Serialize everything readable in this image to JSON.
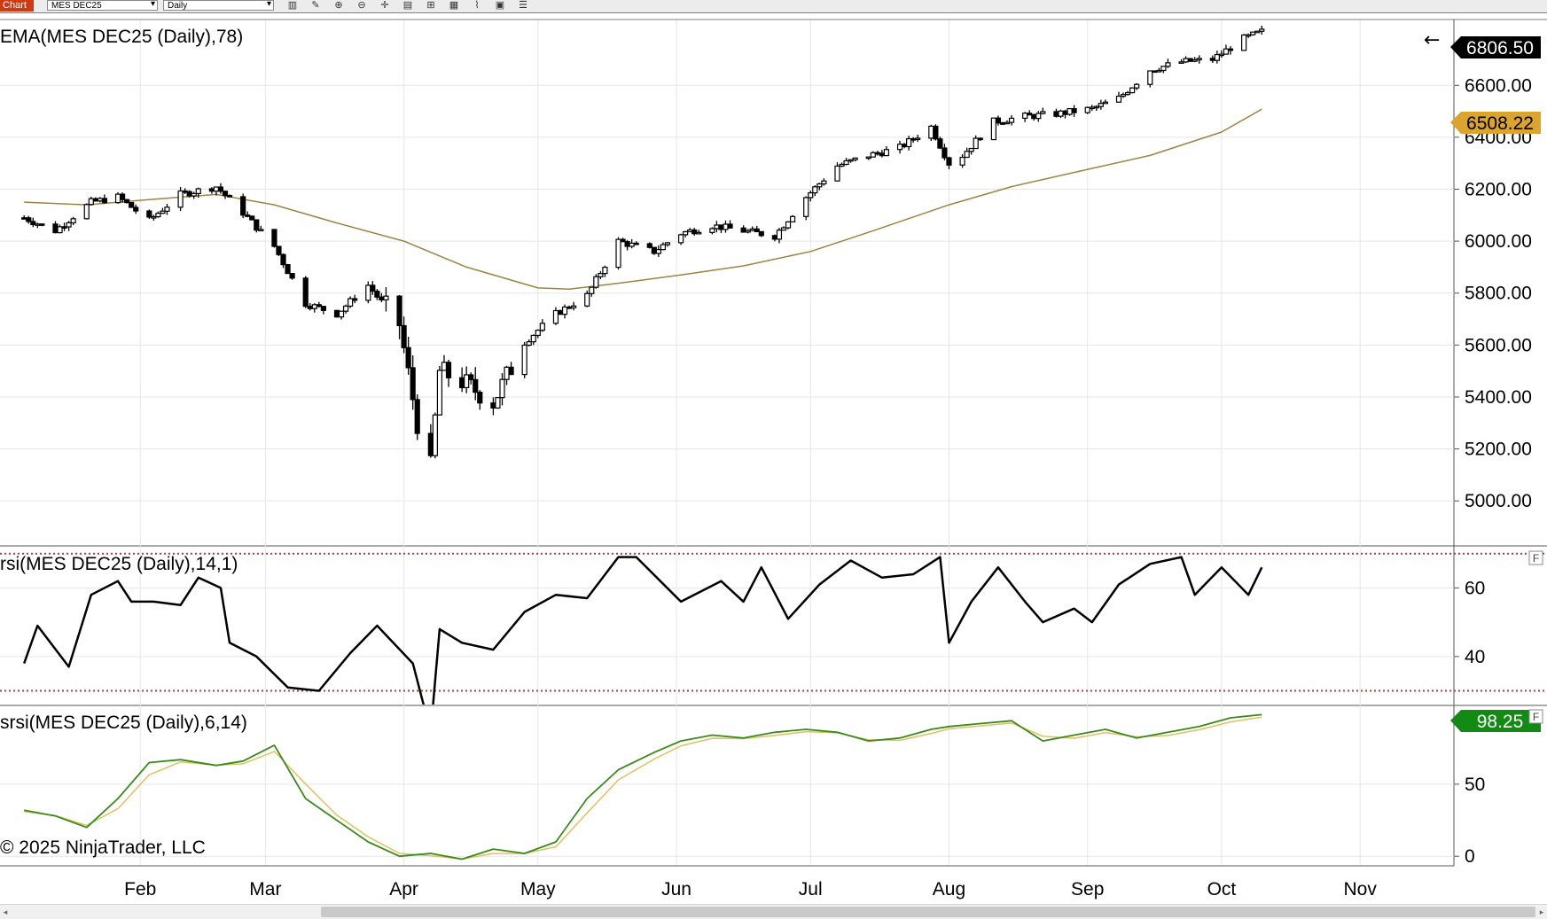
{
  "toolbar": {
    "tab_label": "Chart",
    "instrument": "MES DEC25",
    "interval": "Daily",
    "icons": [
      "bars-type-icon",
      "draw-pencil-icon",
      "zoom-in-icon",
      "zoom-out-icon",
      "crosshair-icon",
      "data-box-icon",
      "properties-icon",
      "indicators-icon",
      "strategies-icon",
      "templates-icon",
      "list-icon"
    ]
  },
  "colors": {
    "price_line": "#000000",
    "ema": "#9c8440",
    "ema_label_bg": "#dba42d",
    "rsi_line": "#000000",
    "rsi_levels": "#b13c3c",
    "srsi_main": "#3a8a1a",
    "srsi_signal": "#e0c060",
    "srsi_label_bg": "#138a13",
    "grid": "#e6e6e6"
  },
  "panels": {
    "price": {
      "label": "EMA(MES DEC25 (Daily),78)",
      "last_price": "6806.50",
      "ema_value": "6508.22",
      "back_icon": "arrow-left-icon",
      "y_ticks": [
        "6600.00",
        "6400.00",
        "6200.00",
        "6000.00",
        "5800.00",
        "5600.00",
        "5400.00",
        "5200.00",
        "5000.00"
      ]
    },
    "rsi": {
      "label": "rsi(MES DEC25 (Daily),14,1)",
      "y_ticks": [
        "60",
        "40"
      ],
      "flag": "F"
    },
    "srsi": {
      "label": "srsi(MES DEC25 (Daily),6,14)",
      "value": "98.25",
      "y_ticks": [
        "50",
        "0"
      ],
      "flag": "F"
    }
  },
  "x_axis": {
    "months": [
      "Feb",
      "Mar",
      "Apr",
      "May",
      "Jun",
      "Jul",
      "Aug",
      "Sep",
      "Oct",
      "Nov"
    ]
  },
  "copyright": "© 2025 NinjaTrader, LLC",
  "chart_data": [
    {
      "type": "line",
      "title": "EMA(MES DEC25 (Daily),78)",
      "series": [
        {
          "name": "MES DEC25 (Daily)",
          "x": [
            "2025-01-06",
            "2025-01-13",
            "2025-01-21",
            "2025-01-27",
            "2025-02-03",
            "2025-02-10",
            "2025-02-18",
            "2025-02-24",
            "2025-03-03",
            "2025-03-10",
            "2025-03-17",
            "2025-03-24",
            "2025-03-31",
            "2025-04-04",
            "2025-04-07",
            "2025-04-09",
            "2025-04-14",
            "2025-04-21",
            "2025-04-28",
            "2025-05-05",
            "2025-05-12",
            "2025-05-19",
            "2025-05-27",
            "2025-06-02",
            "2025-06-09",
            "2025-06-16",
            "2025-06-23",
            "2025-06-30",
            "2025-07-07",
            "2025-07-14",
            "2025-07-21",
            "2025-07-28",
            "2025-08-01",
            "2025-08-04",
            "2025-08-11",
            "2025-08-18",
            "2025-08-25",
            "2025-09-02",
            "2025-09-08",
            "2025-09-15",
            "2025-09-22",
            "2025-09-29",
            "2025-10-06",
            "2025-10-10"
          ],
          "values": [
            6090,
            6040,
            6150,
            6170,
            6080,
            6180,
            6210,
            6110,
            5980,
            5760,
            5720,
            5830,
            5680,
            5300,
            5130,
            5500,
            5460,
            5380,
            5610,
            5720,
            5790,
            6000,
            5960,
            6030,
            6060,
            6040,
            6020,
            6170,
            6290,
            6330,
            6360,
            6440,
            6300,
            6330,
            6460,
            6480,
            6490,
            6510,
            6550,
            6660,
            6690,
            6700,
            6780,
            6806.5
          ]
        },
        {
          "name": "EMA(MES DEC25 (Daily),78)",
          "x": [
            "2025-01-06",
            "2025-01-20",
            "2025-02-03",
            "2025-02-18",
            "2025-03-03",
            "2025-03-17",
            "2025-04-01",
            "2025-04-15",
            "2025-05-01",
            "2025-05-08",
            "2025-05-20",
            "2025-06-02",
            "2025-06-16",
            "2025-07-01",
            "2025-07-15",
            "2025-08-01",
            "2025-08-15",
            "2025-09-02",
            "2025-09-15",
            "2025-10-01",
            "2025-10-10"
          ],
          "values": [
            6150,
            6140,
            6160,
            6180,
            6140,
            6070,
            6000,
            5900,
            5820,
            5815,
            5840,
            5870,
            5905,
            5960,
            6040,
            6140,
            6210,
            6280,
            6330,
            6420,
            6508.22
          ]
        }
      ],
      "y_ticks": [
        5000,
        5200,
        5400,
        5600,
        5800,
        6000,
        6200,
        6400,
        6600
      ],
      "ylim": [
        4830,
        6850
      ],
      "last_price": 6806.5,
      "grid": true
    },
    {
      "type": "line",
      "title": "rsi(MES DEC25 (Daily),14,1)",
      "series": [
        {
          "name": "rsi",
          "x": [
            "2025-01-06",
            "2025-01-09",
            "2025-01-16",
            "2025-01-21",
            "2025-01-27",
            "2025-01-30",
            "2025-02-04",
            "2025-02-10",
            "2025-02-14",
            "2025-02-19",
            "2025-02-21",
            "2025-02-27",
            "2025-03-06",
            "2025-03-13",
            "2025-03-20",
            "2025-03-26",
            "2025-04-03",
            "2025-04-07",
            "2025-04-09",
            "2025-04-14",
            "2025-04-21",
            "2025-04-28",
            "2025-05-05",
            "2025-05-12",
            "2025-05-19",
            "2025-05-23",
            "2025-06-02",
            "2025-06-11",
            "2025-06-16",
            "2025-06-20",
            "2025-06-26",
            "2025-07-03",
            "2025-07-10",
            "2025-07-17",
            "2025-07-24",
            "2025-07-30",
            "2025-08-01",
            "2025-08-06",
            "2025-08-12",
            "2025-08-18",
            "2025-08-22",
            "2025-08-29",
            "2025-09-02",
            "2025-09-08",
            "2025-09-15",
            "2025-09-22",
            "2025-09-25",
            "2025-10-01",
            "2025-10-07",
            "2025-10-10"
          ],
          "values": [
            38,
            49,
            37,
            58,
            62,
            56,
            56,
            55,
            63,
            60,
            44,
            40,
            31,
            30,
            41,
            49,
            38,
            18,
            48,
            44,
            42,
            53,
            58,
            57,
            69,
            69,
            56,
            62,
            56,
            66,
            51,
            61,
            68,
            63,
            64,
            69,
            44,
            56,
            66,
            56,
            50,
            54,
            50,
            61,
            67,
            69,
            58,
            66,
            58,
            66
          ]
        }
      ],
      "levels": [
        30,
        70
      ],
      "y_ticks": [
        40,
        60
      ],
      "ylim": [
        26,
        72
      ]
    },
    {
      "type": "line",
      "title": "srsi(MES DEC25 (Daily),6,14)",
      "series": [
        {
          "name": "srsi",
          "x": [
            "2025-01-06",
            "2025-01-13",
            "2025-01-20",
            "2025-01-27",
            "2025-02-03",
            "2025-02-10",
            "2025-02-18",
            "2025-02-24",
            "2025-03-03",
            "2025-03-10",
            "2025-03-17",
            "2025-03-24",
            "2025-03-31",
            "2025-04-07",
            "2025-04-14",
            "2025-04-21",
            "2025-04-28",
            "2025-05-05",
            "2025-05-12",
            "2025-05-19",
            "2025-05-27",
            "2025-06-02",
            "2025-06-09",
            "2025-06-16",
            "2025-06-23",
            "2025-06-30",
            "2025-07-07",
            "2025-07-14",
            "2025-07-21",
            "2025-07-28",
            "2025-08-01",
            "2025-08-08",
            "2025-08-15",
            "2025-08-22",
            "2025-08-29",
            "2025-09-05",
            "2025-09-12",
            "2025-09-19",
            "2025-09-26",
            "2025-10-03",
            "2025-10-10"
          ],
          "values": [
            32,
            28,
            20,
            40,
            65,
            67,
            63,
            66,
            77,
            40,
            25,
            10,
            0,
            2,
            -2,
            5,
            2,
            10,
            40,
            60,
            72,
            80,
            84,
            82,
            86,
            88,
            86,
            80,
            82,
            88,
            90,
            92,
            94,
            80,
            84,
            88,
            82,
            86,
            90,
            96,
            98.25
          ]
        }
      ],
      "y_ticks": [
        0,
        50
      ],
      "ylim": [
        -6,
        104
      ],
      "last_value": 98.25
    }
  ]
}
